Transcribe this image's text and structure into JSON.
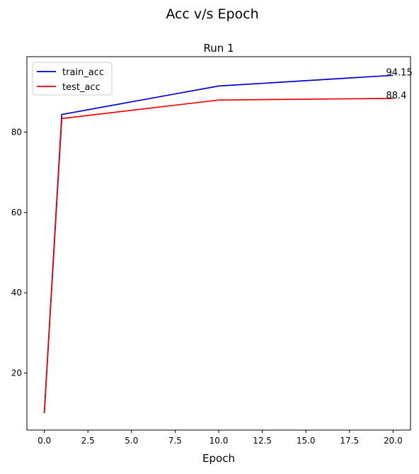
{
  "chart_data": {
    "type": "line",
    "suptitle": "Acc v/s Epoch",
    "title": "Run 1",
    "xlabel": "Epoch",
    "ylabel": "",
    "x": [
      0,
      1,
      10,
      20
    ],
    "xlim": [
      -1,
      21
    ],
    "ylim": [
      5.8,
      98.8
    ],
    "xticks": [
      0.0,
      2.5,
      5.0,
      7.5,
      10.0,
      12.5,
      15.0,
      17.5,
      20.0
    ],
    "xtick_labels": [
      "0.0",
      "2.5",
      "5.0",
      "7.5",
      "10.0",
      "12.5",
      "15.0",
      "17.5",
      "20.0"
    ],
    "yticks": [
      20,
      40,
      60,
      80
    ],
    "ytick_labels": [
      "20",
      "40",
      "60",
      "80"
    ],
    "grid": false,
    "legend_position": "upper-left",
    "series": [
      {
        "name": "train_acc",
        "color": "#0000cc",
        "values": [
          10.0,
          84.4,
          91.5,
          94.15
        ]
      },
      {
        "name": "test_acc",
        "color": "#ee0000",
        "values": [
          10.0,
          83.4,
          88.0,
          88.4
        ]
      }
    ],
    "annotations": [
      {
        "text": "94.15",
        "x": 19.6,
        "y": 94.15
      },
      {
        "text": "88.4",
        "x": 19.6,
        "y": 88.4
      }
    ]
  }
}
